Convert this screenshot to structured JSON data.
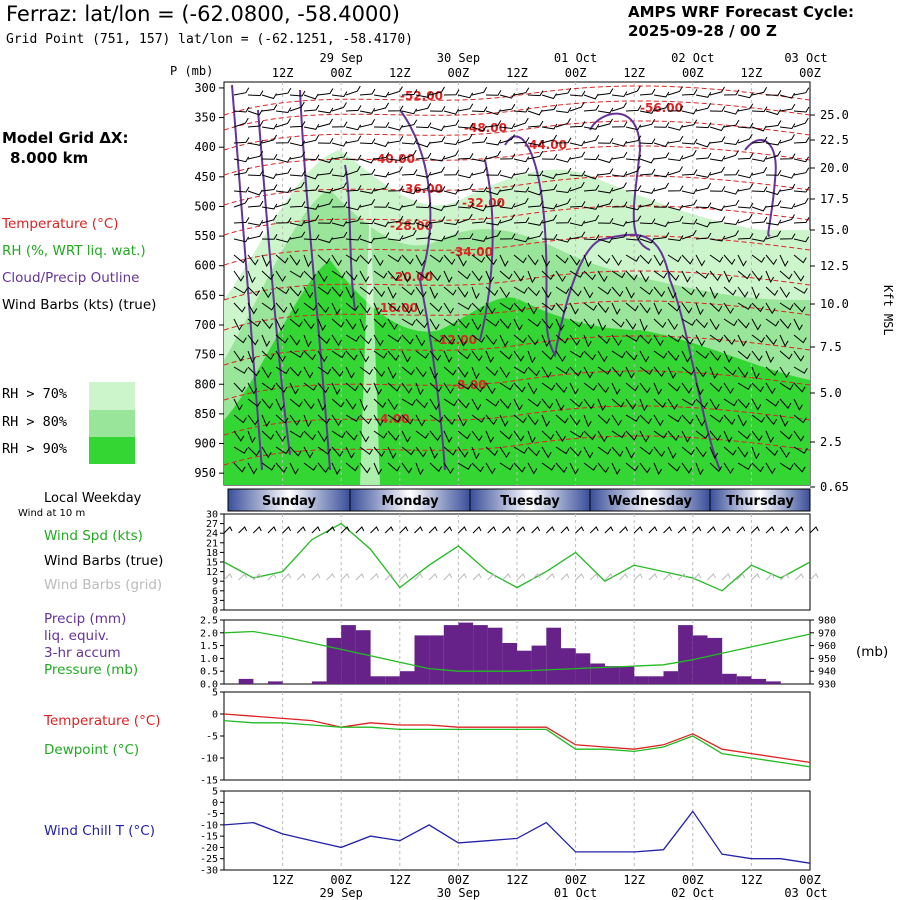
{
  "header": {
    "title": "Ferraz:  lat/lon = (-62.0800, -58.4000)",
    "subtitle": "Grid Point (751, 157) lat/lon = (-62.1251, -58.4170)",
    "cycle_line1": "AMPS WRF Forecast Cycle:",
    "cycle_line2": "2025-09-28 / 00  Z",
    "grid_dx_line1": "Model Grid ΔX:",
    "grid_dx_line2": "8.000 km"
  },
  "legend": {
    "temperature": "Temperature (°C)",
    "rh": "RH (%, WRT liq. wat.)",
    "cloud": "Cloud/Precip Outline",
    "wind": "Wind Barbs (kts) (true)",
    "rh70": "RH > 70%",
    "rh80": "RH > 80%",
    "rh90": "RH > 90%",
    "colors": {
      "rh70": "#ccf5cc",
      "rh80": "#99e599",
      "rh90": "#33d633"
    }
  },
  "time_axis": {
    "top_hours": [
      "12Z",
      "00Z",
      "12Z",
      "00Z",
      "12Z",
      "00Z",
      "12Z",
      "00Z",
      "12Z",
      "00Z"
    ],
    "dates": [
      "29 Sep",
      "30 Sep",
      "01 Oct",
      "02 Oct",
      "03 Oct"
    ],
    "bottom_hours": [
      "12Z",
      "00Z",
      "12Z",
      "00Z",
      "12Z",
      "00Z",
      "12Z",
      "00Z",
      "12Z",
      "00Z"
    ]
  },
  "weekdays": {
    "label": "Local Weekday",
    "sublabel": "Wind at 10 m",
    "days": [
      "Sunday",
      "Monday",
      "Tuesday",
      "Wednesday",
      "Thursday"
    ]
  },
  "panel_labels": {
    "wind_spd": "Wind Spd (kts)",
    "wind_true": "Wind Barbs (true)",
    "wind_grid": "Wind Barbs (grid)",
    "precip": "Precip (mm)",
    "liq": "liq. equiv.",
    "accum": "3-hr accum",
    "pressure": "Pressure (mb)",
    "mb": "(mb)",
    "temp": "Temperature (°C)",
    "dewpoint": "Dewpoint (°C)",
    "windchill": "Wind Chill T (°C)"
  },
  "chart_data": [
    {
      "type": "heatmap",
      "name": "cross-section",
      "yaxis_title": "P (mb)",
      "y2axis_title": "Kft MSL",
      "pressure_ticks": [
        "300",
        "350",
        "400",
        "450",
        "500",
        "550",
        "600",
        "650",
        "700",
        "750",
        "800",
        "850",
        "900",
        "950"
      ],
      "kft_ticks": [
        "25.0",
        "22.5",
        "20.0",
        "17.5",
        "15.0",
        "12.5",
        "10.0",
        "7.5",
        "5.0",
        "2.5",
        "0.65"
      ],
      "isotherm_labels": [
        "-52.00",
        "-56.00",
        "-48.00",
        "-44.00",
        "-40.00",
        "-36.00",
        "-32.00",
        "-28.00",
        "-34.00",
        "-20.00",
        "-16.00",
        "-12.00",
        "-8.00",
        "-4.00"
      ]
    },
    {
      "type": "line",
      "name": "wind-speed",
      "ylabel": "Wind Spd (kts)",
      "yticks": [
        "30",
        "27",
        "24",
        "21",
        "18",
        "15",
        "12",
        "9",
        "6",
        "3",
        "0"
      ],
      "ylim": [
        0,
        30
      ],
      "x_hours": [
        0,
        6,
        12,
        18,
        24,
        30,
        36,
        42,
        48,
        54,
        60,
        66,
        72,
        78,
        84,
        90,
        96,
        102,
        108,
        114,
        120
      ],
      "values": [
        15,
        10,
        12,
        22,
        27,
        19,
        7,
        14,
        20,
        12,
        7,
        12,
        18,
        9,
        14,
        12,
        10,
        6,
        14,
        10,
        15
      ],
      "color": "#22bb22"
    },
    {
      "type": "bar",
      "name": "precip-pressure",
      "ylabel": "Precip (mm)",
      "yticks": [
        "2.5",
        "2.0",
        "1.5",
        "1.0",
        "0.5",
        "0.0"
      ],
      "ylim": [
        0,
        2.5
      ],
      "precip_x_hours": [
        3,
        6,
        9,
        12,
        15,
        18,
        21,
        24,
        27,
        30,
        33,
        36,
        39,
        42,
        45,
        48,
        51,
        54,
        57,
        60,
        63,
        66,
        69,
        72,
        75,
        78,
        81,
        84,
        87,
        90,
        93,
        96,
        99,
        102,
        105,
        108,
        111,
        114,
        117
      ],
      "precip_values": [
        0,
        0.2,
        0,
        0.1,
        0,
        0,
        0.1,
        1.8,
        2.3,
        2.1,
        0.3,
        0.3,
        0.5,
        1.9,
        1.9,
        2.3,
        2.4,
        2.3,
        2.2,
        1.6,
        1.3,
        1.5,
        2.2,
        1.4,
        1.2,
        0.8,
        0.7,
        0.7,
        0.3,
        0.3,
        0.5,
        2.3,
        1.9,
        1.8,
        0.4,
        0.3,
        0.2,
        0.1,
        0
      ],
      "precip_color": "#662288",
      "pressure_label": "Pressure (mb)",
      "pressure_yticks": [
        "980",
        "970",
        "960",
        "950",
        "940",
        "930"
      ],
      "pressure_ylim": [
        930,
        980
      ],
      "pressure_x_hours": [
        0,
        6,
        12,
        18,
        24,
        30,
        36,
        42,
        48,
        54,
        60,
        66,
        72,
        78,
        84,
        90,
        96,
        102,
        108,
        114,
        120
      ],
      "pressure_values": [
        970,
        971,
        967,
        962,
        957,
        952,
        947,
        942,
        940,
        940,
        940,
        941,
        942,
        943,
        944,
        945,
        949,
        954,
        959,
        964,
        969
      ],
      "pressure_color": "#22bb22"
    },
    {
      "type": "line",
      "name": "temp-dewpoint",
      "ylabel": "Temperature (°C)",
      "yticks": [
        "5",
        "0",
        "-5",
        "-10",
        "-15"
      ],
      "ylim": [
        -15,
        5
      ],
      "x_hours": [
        0,
        6,
        12,
        18,
        24,
        30,
        36,
        42,
        48,
        54,
        60,
        66,
        72,
        78,
        84,
        90,
        96,
        102,
        108,
        114,
        120
      ],
      "series": [
        {
          "name": "Temperature (°C)",
          "color": "#dd2222",
          "values": [
            0,
            -0.5,
            -1,
            -1.5,
            -3,
            -2,
            -2.5,
            -2.5,
            -3,
            -3,
            -3,
            -3,
            -7,
            -7.5,
            -8,
            -7,
            -4.5,
            -8,
            -9,
            -10,
            -11
          ]
        },
        {
          "name": "Dewpoint (°C)",
          "color": "#22bb22",
          "values": [
            -1.5,
            -2,
            -2,
            -2.5,
            -3,
            -3,
            -3.5,
            -3.5,
            -3.5,
            -3.5,
            -3.5,
            -3.5,
            -8,
            -8,
            -8.5,
            -7.5,
            -5,
            -9,
            -10,
            -11,
            -12
          ]
        }
      ]
    },
    {
      "type": "line",
      "name": "wind-chill",
      "ylabel": "Wind Chill T (°C)",
      "yticks": [
        "5",
        "0",
        "-5",
        "-10",
        "-15",
        "-20",
        "-25",
        "-30"
      ],
      "ylim": [
        -30,
        5
      ],
      "x_hours": [
        0,
        6,
        12,
        18,
        24,
        30,
        36,
        42,
        48,
        54,
        60,
        66,
        72,
        78,
        84,
        90,
        96,
        102,
        108,
        114,
        120
      ],
      "values": [
        -10,
        -9,
        -14,
        -17,
        -20,
        -15,
        -17,
        -10,
        -18,
        -17,
        -16,
        -9,
        -22,
        -22,
        -22,
        -21,
        -4,
        -23,
        -25,
        -25,
        -27
      ],
      "color": "#2222aa"
    }
  ]
}
